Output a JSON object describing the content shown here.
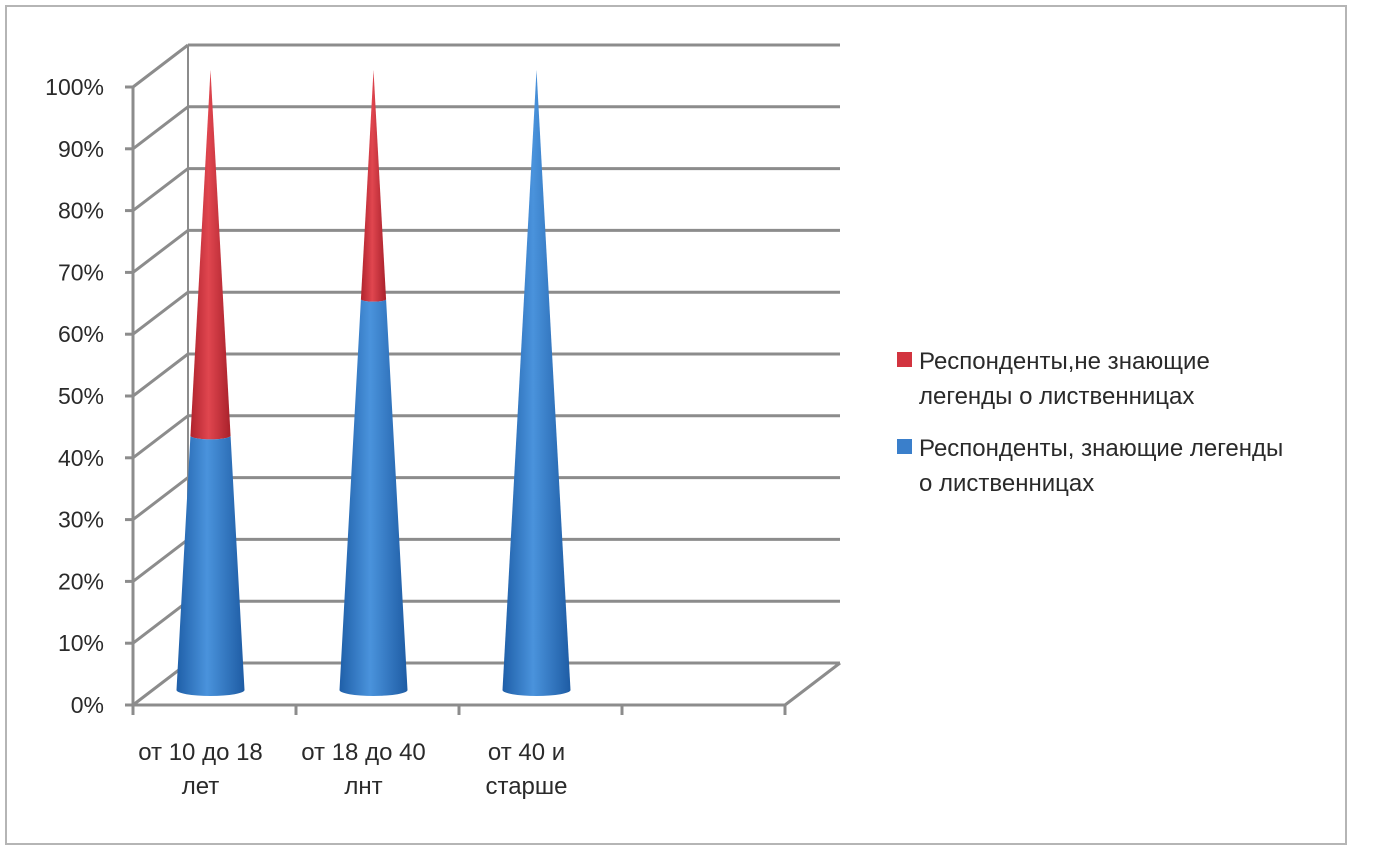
{
  "chart_data": {
    "type": "bar",
    "style": "3d-cone-stacked-100",
    "categories": [
      [
        "от 10 до 18",
        "лет"
      ],
      [
        "от 18 до 40",
        "лнт"
      ],
      [
        "от 40 и",
        "старше"
      ]
    ],
    "y_ticks": [
      "0%",
      "10%",
      "20%",
      "30%",
      "40%",
      "50%",
      "60%",
      "70%",
      "80%",
      "90%",
      "100%"
    ],
    "ylim": [
      0,
      100
    ],
    "grid": true,
    "legend_position": "right",
    "series": [
      {
        "name": "Респонденты, знающие легенды о лиственницах",
        "legend_lines": [
          "Респонденты, знающие легенды",
          "о лиственницах"
        ],
        "color": "#3a7fcb",
        "values": [
          41,
          63,
          100
        ]
      },
      {
        "name": "Респонденты,не знающие легенды о лиственницах",
        "legend_lines": [
          "Респонденты,не знающие",
          "легенды о лиственницах"
        ],
        "color": "#d2343f",
        "values": [
          59,
          37,
          0
        ]
      }
    ],
    "legend_order": [
      1,
      0
    ]
  }
}
